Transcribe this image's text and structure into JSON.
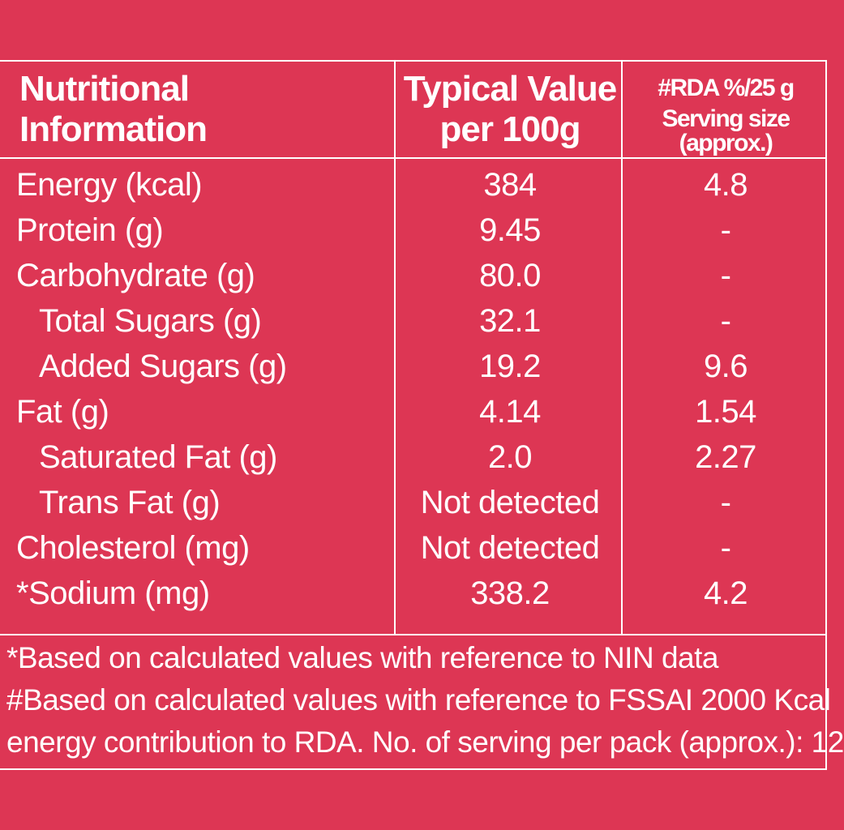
{
  "header": {
    "nutritional_line1": "Nutritional",
    "nutritional_line2": "Information",
    "typical_line1": "Typical Value",
    "typical_line2": "per 100g",
    "rda_line1": "#RDA %/25 g",
    "rda_line2": "Serving size (approx.)"
  },
  "rows": [
    {
      "label": "Energy (kcal)",
      "value": "384",
      "rda": "4.8"
    },
    {
      "label": "Protein (g)",
      "value": "9.45",
      "rda": "-"
    },
    {
      "label": "Carbohydrate (g)",
      "value": "80.0",
      "rda": "-"
    },
    {
      "label": "Total Sugars (g)",
      "value": "32.1",
      "rda": "-"
    },
    {
      "label": "Added Sugars (g)",
      "value": "19.2",
      "rda": "9.6"
    },
    {
      "label": "Fat (g)",
      "value": "4.14",
      "rda": "1.54"
    },
    {
      "label": "Saturated Fat (g)",
      "value": "2.0",
      "rda": "2.27"
    },
    {
      "label": "Trans Fat (g)",
      "value": "Not detected",
      "rda": "-"
    },
    {
      "label": "Cholesterol (mg)",
      "value": "Not detected",
      "rda": "-"
    },
    {
      "label": "*Sodium (mg)",
      "value": "338.2",
      "rda": "4.2"
    }
  ],
  "footnotes": {
    "line1": "*Based on calculated values with reference to NIN data",
    "line2": "#Based on calculated values with reference to FSSAI 2000 Kcal",
    "line3": "energy contribution to RDA.  No. of serving per pack (approx.): 12"
  },
  "colors": {
    "background": "#dd3654",
    "text": "#ffffff",
    "lines": "#ffffff"
  }
}
